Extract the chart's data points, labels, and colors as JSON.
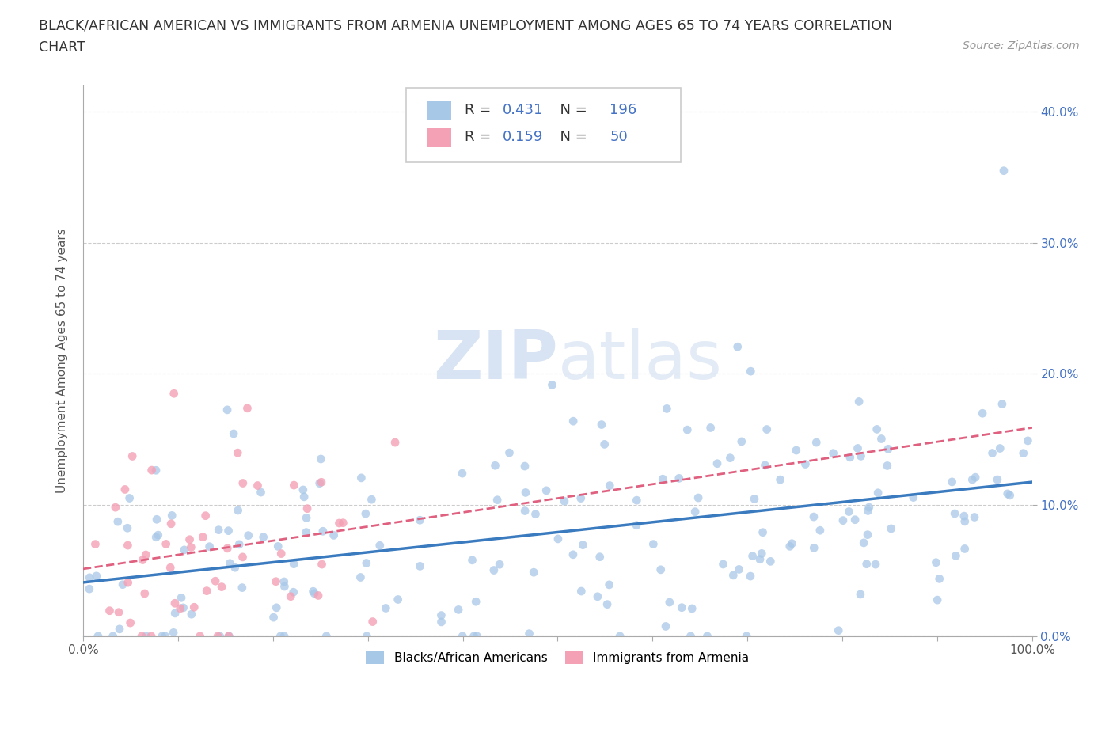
{
  "title_line1": "BLACK/AFRICAN AMERICAN VS IMMIGRANTS FROM ARMENIA UNEMPLOYMENT AMONG AGES 65 TO 74 YEARS CORRELATION",
  "title_line2": "CHART",
  "source_text": "Source: ZipAtlas.com",
  "ylabel": "Unemployment Among Ages 65 to 74 years",
  "xlim": [
    0.0,
    1.0
  ],
  "ylim": [
    0.0,
    0.42
  ],
  "yticks": [
    0.0,
    0.1,
    0.2,
    0.3,
    0.4
  ],
  "ytick_labels": [
    "0.0%",
    "10.0%",
    "20.0%",
    "30.0%",
    "40.0%"
  ],
  "xtick_positions": [
    0.0,
    1.0
  ],
  "xtick_labels": [
    "0.0%",
    "100.0%"
  ],
  "blue_R": 0.431,
  "blue_N": 196,
  "pink_R": 0.159,
  "pink_N": 50,
  "blue_color": "#a8c8e8",
  "pink_color": "#f4a0b5",
  "blue_line_color": "#3a7abf",
  "pink_line_color": "#e06080",
  "legend_label_blue": "Blacks/African Americans",
  "legend_label_pink": "Immigrants from Armenia",
  "watermark_zip": "ZIP",
  "watermark_atlas": "atlas",
  "background_color": "#ffffff",
  "plot_bg_color": "#ffffff",
  "grid_color": "#cccccc",
  "title_fontsize": 12.5,
  "axis_label_fontsize": 11,
  "tick_fontsize": 11,
  "source_fontsize": 10,
  "legend_fontsize": 13,
  "seed": 99
}
